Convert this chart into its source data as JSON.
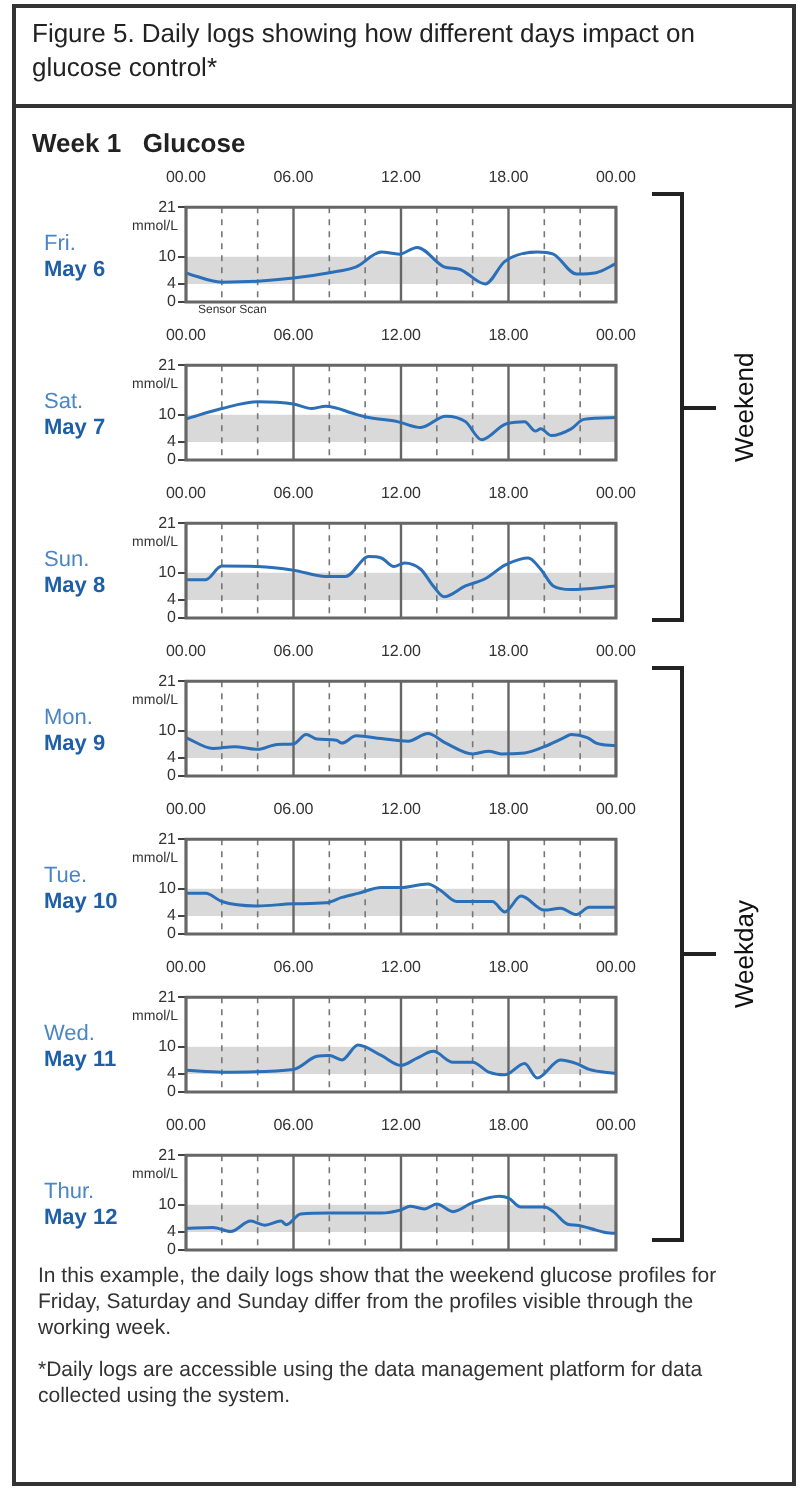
{
  "chart_data": [
    {
      "type": "other",
      "title": "Figure 5.  Daily logs showing how different days impact on glucose control*",
      "subtitle": "Week 1   Glucose",
      "annotations": [
        "Weekend",
        "Weekday",
        "In this example, the daily logs show that the weekend glucose profiles for Friday, Saturday and Sunday differ from the profiles visible through the working week.",
        "*Daily logs are accessible using the data management platform for data collected using the system."
      ]
    },
    {
      "type": "line",
      "title": "Fri.",
      "subtitle": "May 6",
      "ylabel": "mmol/L",
      "annotations": [
        "Sensor Scan"
      ],
      "xlim": [
        "--05-06T00:00",
        "--05-07T00:00"
      ],
      "ylim": [
        0,
        21
      ],
      "yticks": [
        0,
        4,
        10,
        21
      ],
      "grid": "x",
      "legend": false,
      "bands": [
        {
          "axis": "y",
          "from": 4,
          "to": 10,
          "color": "#d9d9d9"
        }
      ],
      "xticks": [
        {
          "value": "--05-06T00:00",
          "label": "00.00"
        },
        {
          "value": "--05-06T02:00",
          "label": null
        },
        {
          "value": "--05-06T04:00",
          "label": null
        },
        {
          "value": "--05-06T06:00",
          "label": "06.00"
        },
        {
          "value": "--05-06T08:00",
          "label": null
        },
        {
          "value": "--05-06T10:00",
          "label": null
        },
        {
          "value": "--05-06T12:00",
          "label": "12.00"
        },
        {
          "value": "--05-06T14:00",
          "label": null
        },
        {
          "value": "--05-06T16:00",
          "label": null
        },
        {
          "value": "--05-06T18:00",
          "label": "18.00"
        },
        {
          "value": "--05-06T20:00",
          "label": null
        },
        {
          "value": "--05-06T22:00",
          "label": null
        },
        {
          "value": "--05-07T00:00",
          "label": "00.00"
        }
      ],
      "series": [
        {
          "color": "#2a6fb8",
          "x": [
            "--05-06T00:00",
            "--05-06T02:00",
            "--05-06T04:00",
            "--05-06T06:00",
            "--05-06T08:00",
            "--05-06T09:30",
            "--05-06T10:54",
            "--05-06T11:54",
            "--05-06T12:54",
            "--05-06T14:24",
            "--05-06T15:18",
            "--05-06T16:42",
            "--05-06T17:48",
            "--05-06T19:36",
            "--05-06T20:30",
            "--05-06T21:48",
            "--05-06T22:54",
            "--05-07T00:00"
          ],
          "values": [
            6.4,
            4.4,
            4.6,
            5.3,
            6.5,
            7.8,
            11.1,
            10.6,
            12.1,
            7.8,
            7.2,
            4.0,
            9.0,
            11.1,
            10.6,
            6.2,
            6.5,
            8.5
          ]
        }
      ]
    },
    {
      "type": "line",
      "title": "Sat.",
      "subtitle": "May 7",
      "ylabel": "mmol/L",
      "xlim": [
        "--05-07T00:00",
        "--05-08T00:00"
      ],
      "ylim": [
        0,
        21
      ],
      "yticks": [
        0,
        4,
        10,
        21
      ],
      "grid": "x",
      "legend": false,
      "bands": [
        {
          "axis": "y",
          "from": 4,
          "to": 10,
          "color": "#d9d9d9"
        }
      ],
      "xticks": [
        {
          "value": "--05-07T00:00",
          "label": "00.00"
        },
        {
          "value": "--05-07T02:00",
          "label": null
        },
        {
          "value": "--05-07T04:00",
          "label": null
        },
        {
          "value": "--05-07T06:00",
          "label": "06.00"
        },
        {
          "value": "--05-07T08:00",
          "label": null
        },
        {
          "value": "--05-07T10:00",
          "label": null
        },
        {
          "value": "--05-07T12:00",
          "label": "12.00"
        },
        {
          "value": "--05-07T14:00",
          "label": null
        },
        {
          "value": "--05-07T16:00",
          "label": null
        },
        {
          "value": "--05-07T18:00",
          "label": "18.00"
        },
        {
          "value": "--05-07T20:00",
          "label": null
        },
        {
          "value": "--05-07T22:00",
          "label": null
        },
        {
          "value": "--05-08T00:00",
          "label": "00.00"
        }
      ],
      "series": [
        {
          "color": "#2a6fb8",
          "x": [
            "--05-07T00:00",
            "--05-07T02:00",
            "--05-07T04:00",
            "--05-07T06:00",
            "--05-07T07:00",
            "--05-07T07:48",
            "--05-07T09:30",
            "--05-07T10:12",
            "--05-07T11:48",
            "--05-07T13:06",
            "--05-07T14:30",
            "--05-07T15:36",
            "--05-07T16:30",
            "--05-07T17:48",
            "--05-07T18:54",
            "--05-07T19:30",
            "--05-07T19:48",
            "--05-07T20:24",
            "--05-07T21:30",
            "--05-07T22:12",
            "--05-08T00:00"
          ],
          "values": [
            9.1,
            11.4,
            12.9,
            12.4,
            11.4,
            11.9,
            10.1,
            9.4,
            8.5,
            7.2,
            9.7,
            8.5,
            4.5,
            7.9,
            8.5,
            6.4,
            6.9,
            5.4,
            6.9,
            9.0,
            9.4
          ]
        }
      ]
    },
    {
      "type": "line",
      "title": "Sun.",
      "subtitle": "May 8",
      "ylabel": "mmol/L",
      "xlim": [
        "--05-08T00:00",
        "--05-09T00:00"
      ],
      "ylim": [
        0,
        21
      ],
      "yticks": [
        0,
        4,
        10,
        21
      ],
      "grid": "x",
      "legend": false,
      "bands": [
        {
          "axis": "y",
          "from": 4,
          "to": 10,
          "color": "#d9d9d9"
        }
      ],
      "xticks": [
        {
          "value": "--05-08T00:00",
          "label": "00.00"
        },
        {
          "value": "--05-08T02:00",
          "label": null
        },
        {
          "value": "--05-08T04:00",
          "label": null
        },
        {
          "value": "--05-08T06:00",
          "label": "06.00"
        },
        {
          "value": "--05-08T08:00",
          "label": null
        },
        {
          "value": "--05-08T10:00",
          "label": null
        },
        {
          "value": "--05-08T12:00",
          "label": "12.00"
        },
        {
          "value": "--05-08T14:00",
          "label": null
        },
        {
          "value": "--05-08T16:00",
          "label": null
        },
        {
          "value": "--05-08T18:00",
          "label": "18.00"
        },
        {
          "value": "--05-08T20:00",
          "label": null
        },
        {
          "value": "--05-08T22:00",
          "label": null
        },
        {
          "value": "--05-09T00:00",
          "label": "00.00"
        }
      ],
      "series": [
        {
          "color": "#2a6fb8",
          "x": [
            "--05-08T00:00",
            "--05-08T01:06",
            "--05-08T02:00",
            "--05-08T04:00",
            "--05-08T06:00",
            "--05-08T07:48",
            "--05-08T08:54",
            "--05-08T10:12",
            "--05-08T10:54",
            "--05-08T11:36",
            "--05-08T12:12",
            "--05-08T13:06",
            "--05-08T13:48",
            "--05-08T14:24",
            "--05-08T15:36",
            "--05-08T16:42",
            "--05-08T17:48",
            "--05-08T19:06",
            "--05-08T19:48",
            "--05-08T20:30",
            "--05-08T21:30",
            "--05-09T00:00"
          ],
          "values": [
            8.5,
            8.5,
            11.5,
            11.4,
            10.6,
            9.2,
            9.2,
            13.6,
            13.3,
            11.4,
            12.2,
            10.8,
            7.1,
            4.7,
            7.1,
            8.7,
            11.7,
            13.3,
            10.8,
            7.1,
            6.3,
            7.1
          ]
        }
      ]
    },
    {
      "type": "line",
      "title": "Mon.",
      "subtitle": "May 9",
      "ylabel": "mmol/L",
      "xlim": [
        "--05-09T00:00",
        "--05-10T00:00"
      ],
      "ylim": [
        0,
        21
      ],
      "yticks": [
        0,
        4,
        10,
        21
      ],
      "grid": "x",
      "legend": false,
      "bands": [
        {
          "axis": "y",
          "from": 4,
          "to": 10,
          "color": "#d9d9d9"
        }
      ],
      "xticks": [
        {
          "value": "--05-09T00:00",
          "label": "00.00"
        },
        {
          "value": "--05-09T02:00",
          "label": null
        },
        {
          "value": "--05-09T04:00",
          "label": null
        },
        {
          "value": "--05-09T06:00",
          "label": "06.00"
        },
        {
          "value": "--05-09T08:00",
          "label": null
        },
        {
          "value": "--05-09T10:00",
          "label": null
        },
        {
          "value": "--05-09T12:00",
          "label": "12.00"
        },
        {
          "value": "--05-09T14:00",
          "label": null
        },
        {
          "value": "--05-09T16:00",
          "label": null
        },
        {
          "value": "--05-09T18:00",
          "label": "18.00"
        },
        {
          "value": "--05-09T20:00",
          "label": null
        },
        {
          "value": "--05-09T22:00",
          "label": null
        },
        {
          "value": "--05-10T00:00",
          "label": "00.00"
        }
      ],
      "series": [
        {
          "color": "#2a6fb8",
          "x": [
            "--05-09T00:00",
            "--05-09T01:30",
            "--05-09T02:42",
            "--05-09T04:00",
            "--05-09T05:06",
            "--05-09T06:00",
            "--05-09T06:42",
            "--05-09T07:18",
            "--05-09T08:24",
            "--05-09T08:42",
            "--05-09T09:30",
            "--05-09T10:54",
            "--05-09T12:24",
            "--05-09T13:30",
            "--05-09T14:30",
            "--05-09T16:00",
            "--05-09T16:54",
            "--05-09T17:36",
            "--05-09T18:54",
            "--05-09T20:00",
            "--05-09T21:06",
            "--05-09T21:30",
            "--05-09T22:24",
            "--05-09T22:54",
            "--05-10T00:00"
          ],
          "values": [
            8.5,
            6.1,
            6.5,
            5.9,
            7.0,
            7.1,
            9.2,
            8.2,
            7.9,
            7.3,
            8.9,
            8.3,
            7.7,
            9.4,
            7.3,
            4.9,
            5.5,
            4.9,
            5.1,
            6.5,
            8.5,
            9.2,
            8.5,
            7.3,
            6.7
          ]
        }
      ]
    },
    {
      "type": "line",
      "title": "Tue.",
      "subtitle": "May 10",
      "ylabel": "mmol/L",
      "xlim": [
        "--05-10T00:00",
        "--05-11T00:00"
      ],
      "ylim": [
        0,
        21
      ],
      "yticks": [
        0,
        4,
        10,
        21
      ],
      "grid": "x",
      "legend": false,
      "bands": [
        {
          "axis": "y",
          "from": 4,
          "to": 10,
          "color": "#d9d9d9"
        }
      ],
      "xticks": [
        {
          "value": "--05-10T00:00",
          "label": "00.00"
        },
        {
          "value": "--05-10T02:00",
          "label": null
        },
        {
          "value": "--05-10T04:00",
          "label": null
        },
        {
          "value": "--05-10T06:00",
          "label": "06.00"
        },
        {
          "value": "--05-10T08:00",
          "label": null
        },
        {
          "value": "--05-10T10:00",
          "label": null
        },
        {
          "value": "--05-10T12:00",
          "label": "12.00"
        },
        {
          "value": "--05-10T14:00",
          "label": null
        },
        {
          "value": "--05-10T16:00",
          "label": null
        },
        {
          "value": "--05-10T18:00",
          "label": "18.00"
        },
        {
          "value": "--05-10T20:00",
          "label": null
        },
        {
          "value": "--05-10T22:00",
          "label": null
        },
        {
          "value": "--05-11T00:00",
          "label": "00.00"
        }
      ],
      "series": [
        {
          "color": "#2a6fb8",
          "x": [
            "--05-10T00:00",
            "--05-10T01:06",
            "--05-10T02:00",
            "--05-10T04:00",
            "--05-10T06:00",
            "--05-10T07:48",
            "--05-10T08:42",
            "--05-10T09:36",
            "--05-10T10:54",
            "--05-10T12:00",
            "--05-10T13:30",
            "--05-10T14:12",
            "--05-10T15:06",
            "--05-10T17:06",
            "--05-10T17:48",
            "--05-10T18:42",
            "--05-10T20:00",
            "--05-10T20:54",
            "--05-10T21:48",
            "--05-10T22:30",
            "--05-11T00:00"
          ],
          "values": [
            9.0,
            9.0,
            7.2,
            6.2,
            6.7,
            6.9,
            8.1,
            9.0,
            10.3,
            10.3,
            11.1,
            9.7,
            7.2,
            7.2,
            4.9,
            8.4,
            5.3,
            5.7,
            4.3,
            5.9,
            5.9
          ]
        }
      ]
    },
    {
      "type": "line",
      "title": "Wed.",
      "subtitle": "May 11",
      "ylabel": "mmol/L",
      "xlim": [
        "--05-11T00:00",
        "--05-12T00:00"
      ],
      "ylim": [
        0,
        21
      ],
      "yticks": [
        0,
        4,
        10,
        21
      ],
      "grid": "x",
      "legend": false,
      "bands": [
        {
          "axis": "y",
          "from": 4,
          "to": 10,
          "color": "#d9d9d9"
        }
      ],
      "xticks": [
        {
          "value": "--05-11T00:00",
          "label": "00.00"
        },
        {
          "value": "--05-11T02:00",
          "label": null
        },
        {
          "value": "--05-11T04:00",
          "label": null
        },
        {
          "value": "--05-11T06:00",
          "label": "06.00"
        },
        {
          "value": "--05-11T08:00",
          "label": null
        },
        {
          "value": "--05-11T10:00",
          "label": null
        },
        {
          "value": "--05-11T12:00",
          "label": "12.00"
        },
        {
          "value": "--05-11T14:00",
          "label": null
        },
        {
          "value": "--05-11T16:00",
          "label": null
        },
        {
          "value": "--05-11T18:00",
          "label": "18.00"
        },
        {
          "value": "--05-11T20:00",
          "label": null
        },
        {
          "value": "--05-11T22:00",
          "label": null
        },
        {
          "value": "--05-12T00:00",
          "label": "00.00"
        }
      ],
      "series": [
        {
          "color": "#2a6fb8",
          "x": [
            "--05-11T00:00",
            "--05-11T02:00",
            "--05-11T06:00",
            "--05-11T07:18",
            "--05-11T08:00",
            "--05-11T08:42",
            "--05-11T09:36",
            "--05-11T10:54",
            "--05-11T12:00",
            "--05-11T12:54",
            "--05-11T13:48",
            "--05-11T14:54",
            "--05-11T16:00",
            "--05-11T16:54",
            "--05-11T17:48",
            "--05-11T18:54",
            "--05-11T19:36",
            "--05-11T20:54",
            "--05-11T21:48",
            "--05-11T22:30",
            "--05-12T00:00"
          ],
          "values": [
            4.8,
            4.4,
            5.0,
            7.9,
            8.1,
            7.1,
            10.4,
            8.1,
            5.9,
            7.5,
            9.0,
            6.6,
            6.6,
            4.4,
            3.8,
            6.3,
            3.1,
            7.1,
            6.3,
            5.0,
            4.1
          ]
        }
      ]
    },
    {
      "type": "line",
      "title": "Thur.",
      "subtitle": "May 12",
      "ylabel": "mmol/L",
      "xlim": [
        "--05-12T00:00",
        "--05-13T00:00"
      ],
      "ylim": [
        0,
        21
      ],
      "yticks": [
        0,
        4,
        10,
        21
      ],
      "grid": "x",
      "legend": false,
      "bands": [
        {
          "axis": "y",
          "from": 4,
          "to": 10,
          "color": "#d9d9d9"
        }
      ],
      "xticks": [
        {
          "value": "--05-12T00:00",
          "label": "00.00"
        },
        {
          "value": "--05-12T02:00",
          "label": null
        },
        {
          "value": "--05-12T04:00",
          "label": null
        },
        {
          "value": "--05-12T06:00",
          "label": "06.00"
        },
        {
          "value": "--05-12T08:00",
          "label": null
        },
        {
          "value": "--05-12T10:00",
          "label": null
        },
        {
          "value": "--05-12T12:00",
          "label": "12.00"
        },
        {
          "value": "--05-12T14:00",
          "label": null
        },
        {
          "value": "--05-12T16:00",
          "label": null
        },
        {
          "value": "--05-12T18:00",
          "label": "18.00"
        },
        {
          "value": "--05-12T20:00",
          "label": null
        },
        {
          "value": "--05-12T22:00",
          "label": null
        },
        {
          "value": "--05-13T00:00",
          "label": "00.00"
        }
      ],
      "series": [
        {
          "color": "#2a6fb8",
          "x": [
            "--05-12T00:00",
            "--05-12T01:30",
            "--05-12T02:30",
            "--05-12T03:36",
            "--05-12T04:24",
            "--05-12T05:18",
            "--05-12T05:36",
            "--05-12T06:24",
            "--05-12T08:00",
            "--05-12T10:54",
            "--05-12T12:00",
            "--05-12T12:30",
            "--05-12T13:18",
            "--05-12T14:00",
            "--05-12T14:54",
            "--05-12T16:00",
            "--05-12T17:30",
            "--05-12T18:00",
            "--05-12T18:42",
            "--05-12T20:00",
            "--05-12T20:30",
            "--05-12T21:18",
            "--05-12T21:48",
            "--05-12T22:54",
            "--05-12T23:30",
            "--05-13T00:00"
          ],
          "values": [
            4.8,
            5.0,
            4.1,
            6.4,
            5.5,
            6.4,
            5.6,
            8.0,
            8.2,
            8.2,
            8.9,
            9.7,
            9.1,
            10.2,
            8.5,
            10.5,
            11.9,
            11.5,
            9.5,
            9.5,
            8.5,
            5.7,
            5.5,
            4.4,
            3.8,
            3.7
          ]
        }
      ]
    }
  ]
}
